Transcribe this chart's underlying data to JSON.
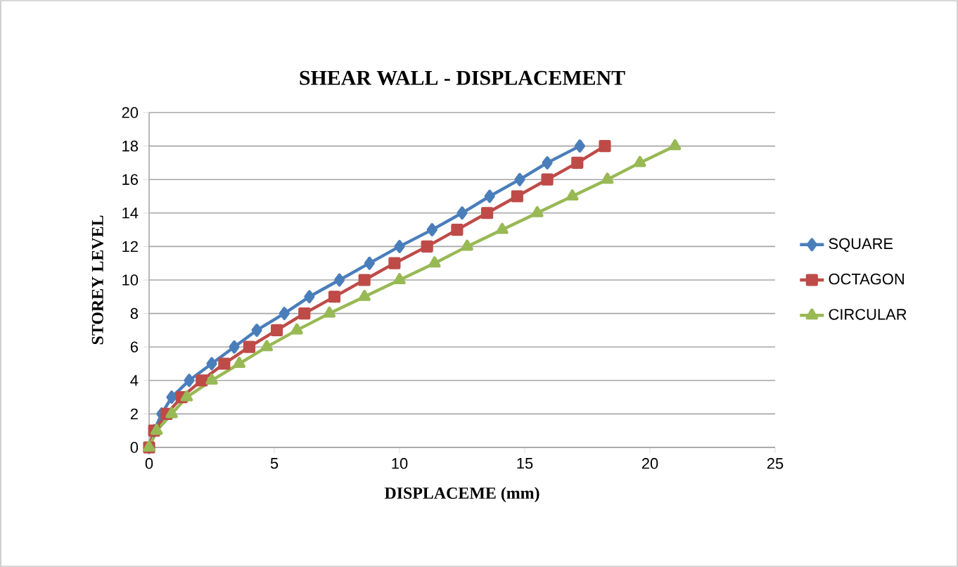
{
  "chart_data": {
    "type": "line",
    "title": "SHEAR WALL - DISPLACEMENT",
    "xlabel": "DISPLACEME (mm)",
    "ylabel": "STOREY LEVEL",
    "xlim": [
      0,
      25
    ],
    "xticks": [
      0,
      5,
      10,
      15,
      20,
      25
    ],
    "ylim": [
      0,
      20
    ],
    "yticks": [
      0,
      2,
      4,
      6,
      8,
      10,
      12,
      14,
      16,
      18,
      20
    ],
    "grid": "y",
    "legend": "right",
    "series": [
      {
        "name": "SQUARE",
        "color": "#4a7ebb",
        "marker": "diamond",
        "x": [
          0,
          0.2,
          0.5,
          0.9,
          1.6,
          2.5,
          3.4,
          4.3,
          5.4,
          6.4,
          7.6,
          8.8,
          10.0,
          11.3,
          12.5,
          13.6,
          14.8,
          15.9,
          17.2
        ],
        "values": [
          0,
          1,
          2,
          3,
          4,
          5,
          6,
          7,
          8,
          9,
          10,
          11,
          12,
          13,
          14,
          15,
          16,
          17,
          18
        ]
      },
      {
        "name": "OCTAGON",
        "color": "#be4b48",
        "marker": "square",
        "x": [
          0,
          0.2,
          0.7,
          1.3,
          2.1,
          3.0,
          4.0,
          5.1,
          6.2,
          7.4,
          8.6,
          9.8,
          11.1,
          12.3,
          13.5,
          14.7,
          15.9,
          17.1,
          18.2
        ],
        "values": [
          0,
          1,
          2,
          3,
          4,
          5,
          6,
          7,
          8,
          9,
          10,
          11,
          12,
          13,
          14,
          15,
          16,
          17,
          18
        ]
      },
      {
        "name": "CIRCULAR",
        "color": "#98b954",
        "marker": "triangle",
        "x": [
          0,
          0.3,
          0.9,
          1.5,
          2.5,
          3.6,
          4.7,
          5.9,
          7.2,
          8.6,
          10.0,
          11.4,
          12.7,
          14.1,
          15.5,
          16.9,
          18.3,
          19.6,
          21.0
        ],
        "values": [
          0,
          1,
          2,
          3,
          4,
          5,
          6,
          7,
          8,
          9,
          10,
          11,
          12,
          13,
          14,
          15,
          16,
          17,
          18
        ]
      }
    ]
  }
}
